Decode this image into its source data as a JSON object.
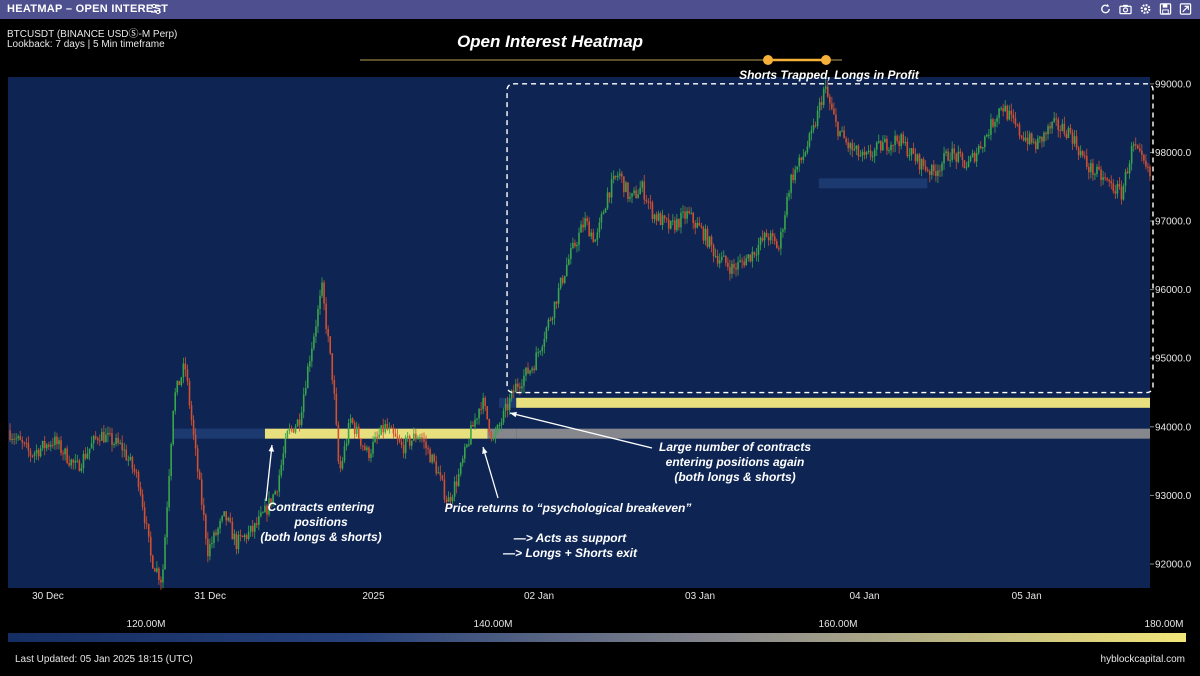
{
  "window": {
    "title": "HEATMAP – OPEN INTEREST"
  },
  "toolbar": {
    "icons": [
      "refresh-icon",
      "camera-icon",
      "gear-icon",
      "save-icon",
      "expand-icon"
    ]
  },
  "info": {
    "symbol": "BTCUSDT (BINANCE USDⓈ-M Perp)",
    "lookback": "Lookback: 7 days | 5 Min timeframe"
  },
  "chart_data": {
    "type": "heatmap",
    "title": "Open Interest Heatmap",
    "x_ticks": [
      "30 Dec",
      "31 Dec",
      "2025",
      "02 Jan",
      "03 Jan",
      "04 Jan",
      "05 Jan"
    ],
    "y_ticks": [
      "99000.0",
      "98000.0",
      "97000.0",
      "96000.0",
      "95000.0",
      "94000.0",
      "93000.0",
      "92000.0"
    ],
    "ylim": [
      91650,
      99100
    ],
    "price_series": [
      {
        "t": 0.0,
        "p": 93950
      },
      {
        "t": 0.02,
        "p": 93600
      },
      {
        "t": 0.04,
        "p": 93800
      },
      {
        "t": 0.06,
        "p": 93400
      },
      {
        "t": 0.08,
        "p": 93900
      },
      {
        "t": 0.1,
        "p": 93700
      },
      {
        "t": 0.115,
        "p": 93200
      },
      {
        "t": 0.125,
        "p": 92100
      },
      {
        "t": 0.135,
        "p": 91750
      },
      {
        "t": 0.145,
        "p": 94400
      },
      {
        "t": 0.155,
        "p": 94900
      },
      {
        "t": 0.165,
        "p": 93500
      },
      {
        "t": 0.175,
        "p": 92200
      },
      {
        "t": 0.19,
        "p": 92700
      },
      {
        "t": 0.2,
        "p": 92300
      },
      {
        "t": 0.215,
        "p": 92500
      },
      {
        "t": 0.225,
        "p": 92750
      },
      {
        "t": 0.235,
        "p": 93100
      },
      {
        "t": 0.245,
        "p": 93900
      },
      {
        "t": 0.255,
        "p": 94100
      },
      {
        "t": 0.265,
        "p": 95100
      },
      {
        "t": 0.275,
        "p": 96000
      },
      {
        "t": 0.285,
        "p": 94600
      },
      {
        "t": 0.29,
        "p": 93300
      },
      {
        "t": 0.3,
        "p": 94100
      },
      {
        "t": 0.315,
        "p": 93600
      },
      {
        "t": 0.33,
        "p": 94000
      },
      {
        "t": 0.345,
        "p": 93700
      },
      {
        "t": 0.36,
        "p": 93900
      },
      {
        "t": 0.375,
        "p": 93400
      },
      {
        "t": 0.385,
        "p": 92900
      },
      {
        "t": 0.395,
        "p": 93300
      },
      {
        "t": 0.405,
        "p": 93900
      },
      {
        "t": 0.415,
        "p": 94400
      },
      {
        "t": 0.425,
        "p": 93800
      },
      {
        "t": 0.435,
        "p": 94200
      },
      {
        "t": 0.445,
        "p": 94600
      },
      {
        "t": 0.46,
        "p": 94900
      },
      {
        "t": 0.475,
        "p": 95600
      },
      {
        "t": 0.49,
        "p": 96400
      },
      {
        "t": 0.505,
        "p": 97000
      },
      {
        "t": 0.515,
        "p": 96700
      },
      {
        "t": 0.525,
        "p": 97400
      },
      {
        "t": 0.535,
        "p": 97700
      },
      {
        "t": 0.545,
        "p": 97300
      },
      {
        "t": 0.555,
        "p": 97500
      },
      {
        "t": 0.565,
        "p": 97100
      },
      {
        "t": 0.58,
        "p": 96900
      },
      {
        "t": 0.595,
        "p": 97100
      },
      {
        "t": 0.61,
        "p": 96800
      },
      {
        "t": 0.62,
        "p": 96500
      },
      {
        "t": 0.635,
        "p": 96300
      },
      {
        "t": 0.65,
        "p": 96500
      },
      {
        "t": 0.665,
        "p": 96800
      },
      {
        "t": 0.675,
        "p": 96600
      },
      {
        "t": 0.685,
        "p": 97600
      },
      {
        "t": 0.695,
        "p": 97900
      },
      {
        "t": 0.705,
        "p": 98300
      },
      {
        "t": 0.715,
        "p": 98950
      },
      {
        "t": 0.725,
        "p": 98400
      },
      {
        "t": 0.735,
        "p": 98100
      },
      {
        "t": 0.75,
        "p": 97900
      },
      {
        "t": 0.765,
        "p": 98100
      },
      {
        "t": 0.78,
        "p": 98200
      },
      {
        "t": 0.795,
        "p": 97900
      },
      {
        "t": 0.81,
        "p": 97700
      },
      {
        "t": 0.825,
        "p": 98000
      },
      {
        "t": 0.84,
        "p": 97800
      },
      {
        "t": 0.855,
        "p": 98200
      },
      {
        "t": 0.87,
        "p": 98700
      },
      {
        "t": 0.885,
        "p": 98300
      },
      {
        "t": 0.9,
        "p": 98100
      },
      {
        "t": 0.915,
        "p": 98400
      },
      {
        "t": 0.93,
        "p": 98300
      },
      {
        "t": 0.945,
        "p": 97800
      },
      {
        "t": 0.96,
        "p": 97600
      },
      {
        "t": 0.975,
        "p": 97400
      },
      {
        "t": 0.985,
        "p": 98100
      },
      {
        "t": 1.0,
        "p": 97650
      }
    ],
    "oi_levels": [
      {
        "price": 93900,
        "t0": 0.145,
        "t1": 0.225,
        "intensity": 0.3
      },
      {
        "price": 93900,
        "t0": 0.225,
        "t1": 0.42,
        "intensity": 0.95
      },
      {
        "price": 93900,
        "t0": 0.42,
        "t1": 0.445,
        "intensity": 0.7
      },
      {
        "price": 93900,
        "t0": 0.445,
        "t1": 1.0,
        "intensity": 0.5
      },
      {
        "price": 94350,
        "t0": 0.43,
        "t1": 0.445,
        "intensity": 0.3
      },
      {
        "price": 94350,
        "t0": 0.445,
        "t1": 1.0,
        "intensity": 0.95
      },
      {
        "price": 97550,
        "t0": 0.71,
        "t1": 0.805,
        "intensity": 0.3
      }
    ],
    "colorbar": {
      "labels": [
        "120.00M",
        "140.00M",
        "160.00M",
        "180.00M"
      ]
    },
    "annotations": {
      "box_title": "Shorts Trapped, Longs in Profit",
      "a1": [
        "Contracts entering",
        "positions",
        "(both longs & shorts)"
      ],
      "a2": "Price returns to “psychological breakeven”",
      "a3": [
        "—>  Acts as support",
        "—> Longs + Shorts exit"
      ],
      "a4": [
        "Large number of contracts",
        "entering positions again",
        "(both longs & shorts)"
      ]
    },
    "colors": {
      "bg": "#0e2554",
      "up": "#3aa54a",
      "down": "#d2502e",
      "low": "#1d3a72",
      "mid": "#8c8c90",
      "high": "#f4ea82"
    }
  },
  "footer": {
    "updated": "Last Updated: 05 Jan 2025 18:15 (UTC)",
    "brand": "hyblockcapital.com"
  }
}
